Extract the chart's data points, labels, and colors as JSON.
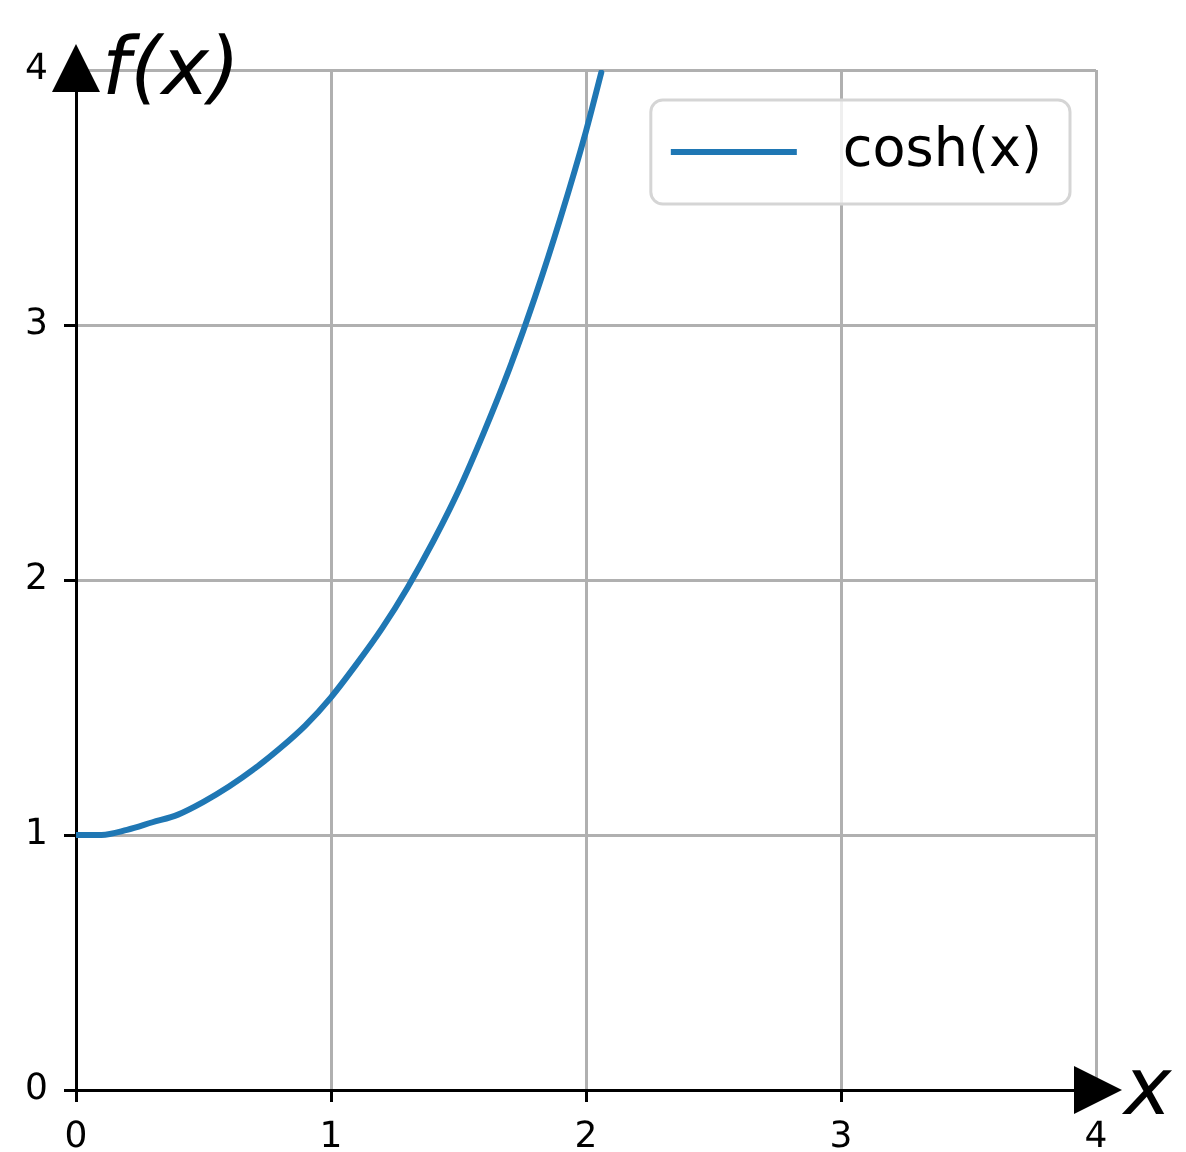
{
  "chart_data": {
    "type": "line",
    "xlabel": "x",
    "ylabel": "f(x)",
    "x": [
      0,
      0.1,
      0.2,
      0.3,
      0.4,
      0.5,
      0.6,
      0.7,
      0.8,
      0.9,
      1.0,
      1.1,
      1.2,
      1.3,
      1.4,
      1.5,
      1.6,
      1.7,
      1.8,
      1.9,
      2.0,
      2.06
    ],
    "series": [
      {
        "name": "cosh(x)",
        "color": "#1f77b4",
        "values": [
          1.0,
          1.0,
          1.02,
          1.05,
          1.08,
          1.13,
          1.19,
          1.26,
          1.34,
          1.43,
          1.54,
          1.67,
          1.81,
          1.97,
          2.15,
          2.35,
          2.58,
          2.83,
          3.11,
          3.42,
          3.76,
          3.99
        ]
      }
    ],
    "xlim": [
      0,
      4
    ],
    "ylim": [
      0,
      4
    ],
    "xticks": [
      0,
      1,
      2,
      3,
      4
    ],
    "yticks": [
      0,
      1,
      2,
      3,
      4
    ],
    "grid": true,
    "legend": "top right",
    "marker": "none",
    "line_style": "solid"
  }
}
